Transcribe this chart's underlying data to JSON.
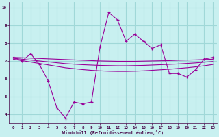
{
  "xlabel": "Windchill (Refroidissement éolien,°C)",
  "ylabel": "",
  "background_color": "#c8f0f0",
  "grid_color": "#a0d8d8",
  "line_color": "#990099",
  "ylim": [
    3.5,
    10.3
  ],
  "xlim": [
    -0.5,
    23.5
  ],
  "yticks": [
    4,
    5,
    6,
    7,
    8,
    9,
    10
  ],
  "xticks": [
    0,
    1,
    2,
    3,
    4,
    5,
    6,
    7,
    8,
    9,
    10,
    11,
    12,
    13,
    14,
    15,
    16,
    17,
    18,
    19,
    20,
    21,
    22,
    23
  ],
  "x": [
    0,
    1,
    2,
    3,
    4,
    5,
    6,
    7,
    8,
    9,
    10,
    11,
    12,
    13,
    14,
    15,
    16,
    17,
    18,
    19,
    20,
    21,
    22,
    23
  ],
  "y_main": [
    7.2,
    7.0,
    7.4,
    6.8,
    5.9,
    4.4,
    3.8,
    4.7,
    4.6,
    4.7,
    7.8,
    9.7,
    9.3,
    8.1,
    8.5,
    8.1,
    7.7,
    7.9,
    6.3,
    6.3,
    6.1,
    6.5,
    7.1,
    7.2
  ],
  "trend1": [
    7.2,
    7.18,
    7.16,
    7.14,
    7.12,
    7.1,
    7.08,
    7.06,
    7.04,
    7.02,
    7.0,
    6.99,
    6.98,
    6.98,
    6.98,
    6.99,
    7.0,
    7.01,
    7.02,
    7.04,
    7.05,
    7.06,
    7.08,
    7.1
  ],
  "trend2": [
    7.15,
    7.1,
    7.05,
    7.0,
    6.95,
    6.9,
    6.85,
    6.82,
    6.79,
    6.77,
    6.75,
    6.74,
    6.73,
    6.73,
    6.74,
    6.75,
    6.77,
    6.79,
    6.81,
    6.83,
    6.86,
    6.89,
    6.93,
    6.97
  ],
  "trend3": [
    7.1,
    7.02,
    6.94,
    6.86,
    6.78,
    6.7,
    6.62,
    6.57,
    6.52,
    6.48,
    6.45,
    6.43,
    6.42,
    6.42,
    6.43,
    6.45,
    6.48,
    6.51,
    6.54,
    6.58,
    6.62,
    6.67,
    6.73,
    6.8
  ]
}
